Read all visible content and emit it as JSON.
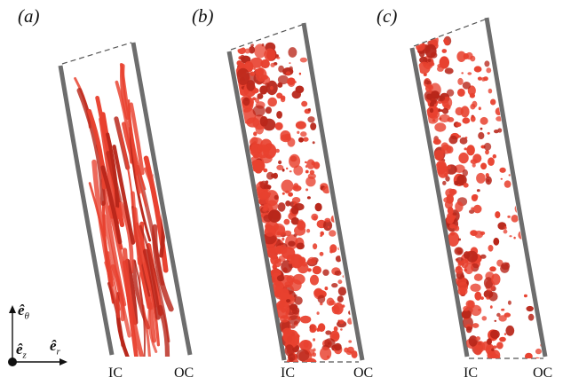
{
  "panels": [
    {
      "label": "(a)",
      "inner": "IC",
      "outer": "OC"
    },
    {
      "label": "(b)",
      "inner": "IC",
      "outer": "OC"
    },
    {
      "label": "(c)",
      "inner": "IC",
      "outer": "OC"
    }
  ],
  "axes": {
    "theta": "ê",
    "theta_sub": "θ",
    "z": "ê",
    "z_sub": "z",
    "r": "ê",
    "r_sub": "r"
  },
  "colors": {
    "structure": "#e8412f",
    "structure_dark": "#b8261a",
    "wall": "#6d6d6d",
    "boundary": "#555555"
  }
}
